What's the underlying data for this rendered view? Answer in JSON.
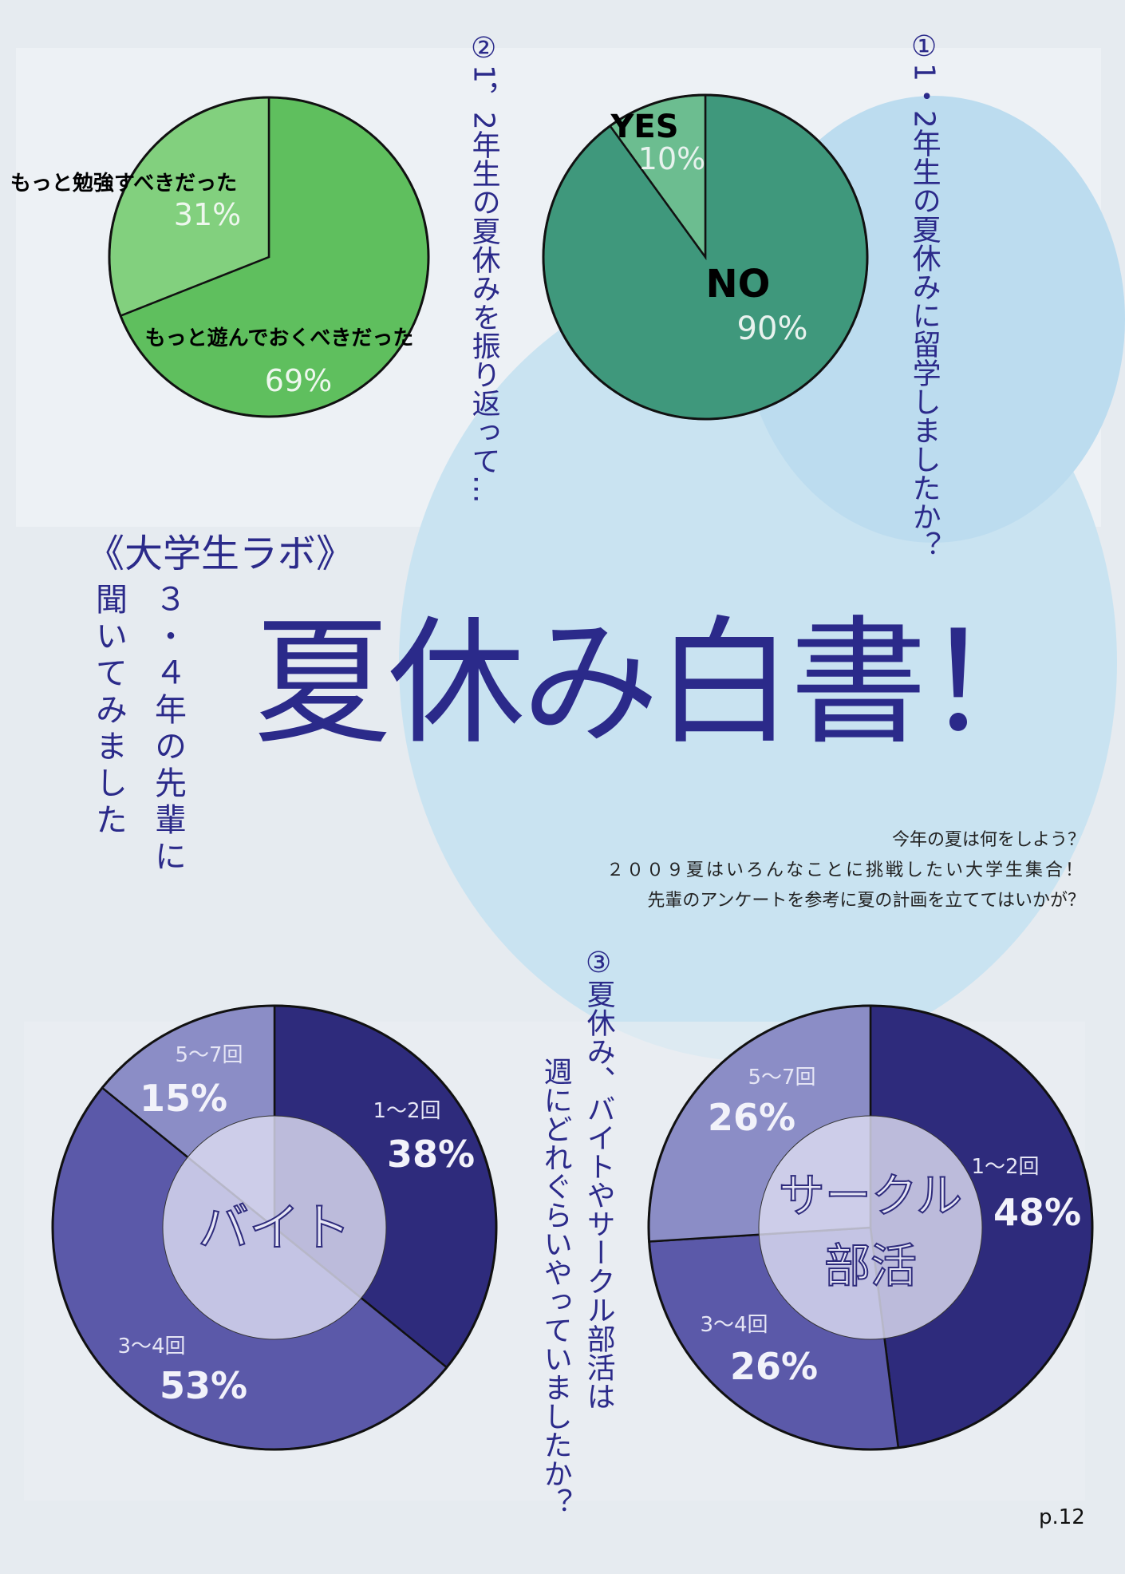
{
  "page": {
    "lab_label": "《大学生ラボ》",
    "subtitle_line1": "３・４年の先輩に",
    "subtitle_line2": "聞いてみました",
    "title": "夏休み白書！",
    "lead": [
      "今年の夏は何をしよう？",
      "２００９夏はいろんなことに挑戦したい大学生集合！",
      "先輩のアンケートを参考に夏の計画を立ててはいかが？"
    ],
    "page_number": "p.12"
  },
  "chart_data": [
    {
      "type": "pie",
      "id": "q1",
      "title": "①1・2年生の夏休みに留学しましたか？",
      "categories": [
        "NO",
        "YES"
      ],
      "values": [
        90,
        10
      ],
      "labels": [
        "90%",
        "10%"
      ],
      "colors": [
        "#3f987c",
        "#6cbd90"
      ]
    },
    {
      "type": "pie",
      "id": "q2",
      "title": "②1，2年生の夏休みを振り返って…",
      "categories": [
        "もっと遊んでおくべきだった",
        "もっと勉強すべきだった"
      ],
      "values": [
        69,
        31
      ],
      "labels": [
        "69%",
        "31%"
      ],
      "colors": [
        "#5fbf5e",
        "#82d07e"
      ]
    },
    {
      "type": "pie",
      "id": "q3-baito",
      "title": "③夏休み、バイトやサークル部活は週にどれぐらいやっていましたか？",
      "center_label": "バイト",
      "categories": [
        "1～2回",
        "3～4回",
        "5～7回"
      ],
      "values": [
        38,
        53,
        15
      ],
      "labels": [
        "38%",
        "53%",
        "15%"
      ],
      "colors": [
        "#2e2b7c",
        "#5b59a9",
        "#8b8dc6"
      ]
    },
    {
      "type": "pie",
      "id": "q3-circle",
      "center_label": [
        "サークル",
        "部活"
      ],
      "categories": [
        "1～2回",
        "3～4回",
        "5～7回"
      ],
      "values": [
        48,
        26,
        26
      ],
      "labels": [
        "48%",
        "26%",
        "26%"
      ],
      "colors": [
        "#2e2b7c",
        "#5b59a9",
        "#8b8dc6"
      ]
    }
  ]
}
